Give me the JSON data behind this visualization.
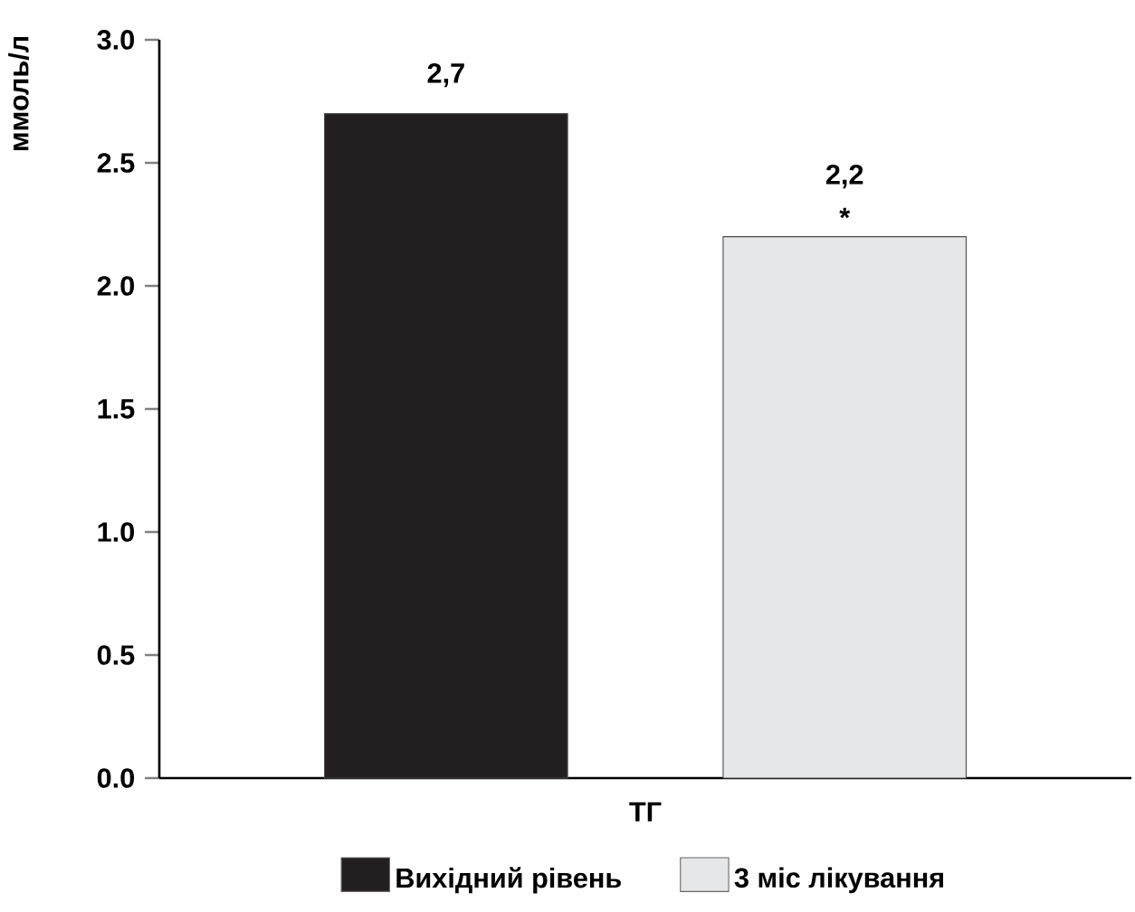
{
  "chart_data": {
    "type": "bar",
    "ylabel": "ммоль/л",
    "categories": [
      "ТГ"
    ],
    "series": [
      {
        "name": "Вихідний рівень",
        "color": "#231f20",
        "values": [
          2.7
        ],
        "value_labels": [
          "2,7"
        ]
      },
      {
        "name": "3 міс лікування",
        "color": "#e6e7e8",
        "values": [
          2.2
        ],
        "value_labels": [
          "2,2"
        ]
      }
    ],
    "ylim": [
      0,
      3
    ],
    "yticks": [
      {
        "value": 0,
        "label": "0.0"
      },
      {
        "value": 0.5,
        "label": "0.5"
      },
      {
        "value": 1,
        "label": "1.0"
      },
      {
        "value": 1.5,
        "label": "1.5"
      },
      {
        "value": 2,
        "label": "2.0"
      },
      {
        "value": 2.5,
        "label": "2.5"
      },
      {
        "value": 3,
        "label": "3.0"
      }
    ],
    "annotations": [
      "*"
    ],
    "legend": "bottom",
    "grid": false
  }
}
